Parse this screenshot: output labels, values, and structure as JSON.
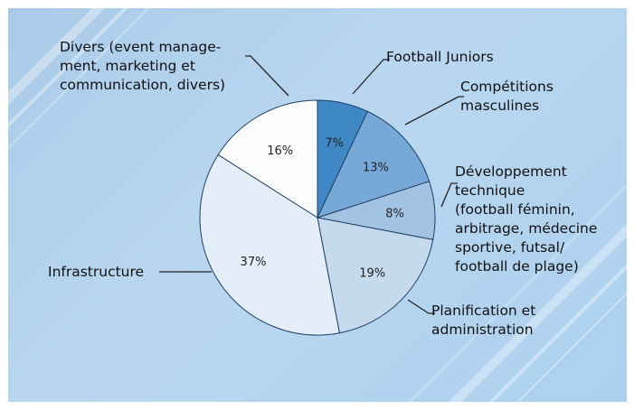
{
  "chart_data": {
    "type": "pie",
    "title": "",
    "start_angle_deg": 0,
    "direction": "clockwise",
    "slices": [
      {
        "label": "Football Juniors",
        "value": 7,
        "percent_label": "7%",
        "color": "#3f88c5"
      },
      {
        "label": "Compétitions\nmasculines",
        "value": 13,
        "percent_label": "13%",
        "color": "#77a9d8"
      },
      {
        "label": "Développement\ntechnique\n(football féminin,\narbitrage, médecine\nsportive, futsal/\nfootball de plage)",
        "value": 8,
        "percent_label": "8%",
        "color": "#a3c3e3"
      },
      {
        "label": "Planification et\nadministration",
        "value": 19,
        "percent_label": "19%",
        "color": "#c6daee"
      },
      {
        "label": "Infrastructure",
        "value": 37,
        "percent_label": "37%",
        "color": "#e3eef8"
      },
      {
        "label": "Divers (event manage-\nment, marketing et\ncommunication, divers)",
        "value": 16,
        "percent_label": "16%",
        "color": "#fbfdff"
      }
    ]
  }
}
